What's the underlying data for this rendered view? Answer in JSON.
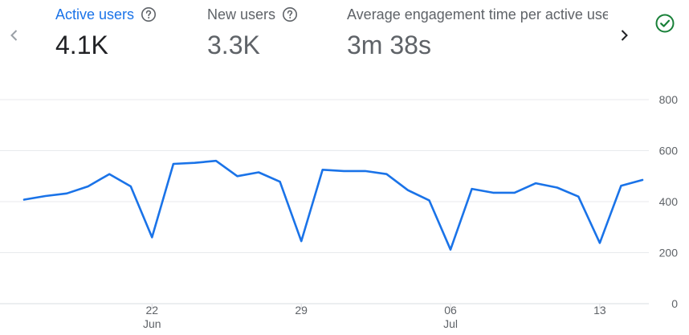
{
  "nav": {
    "prev_icon": "chevron-left-icon",
    "next_icon": "chevron-right-icon"
  },
  "metrics": [
    {
      "label": "Active users",
      "value": "4.1K",
      "help_icon": "help-circle-icon",
      "active": true
    },
    {
      "label": "New users",
      "value": "3.3K",
      "help_icon": "help-circle-icon",
      "active": false
    },
    {
      "label": "Average engagement time per active user",
      "value": "3m 38s",
      "active": false
    }
  ],
  "status": {
    "icon": "check-circle-icon",
    "color": "#188038"
  },
  "colors": {
    "series": "#1a73e8",
    "active_label": "#1a73e8",
    "grid": "#e8eaed"
  },
  "chart_data": {
    "type": "line",
    "ylim": [
      0,
      800
    ],
    "y_ticks": [
      0,
      200,
      400,
      600,
      800
    ],
    "y_axis_position": "right",
    "grid": true,
    "x_ticks": [
      {
        "index": 6,
        "day": "22",
        "month": "Jun"
      },
      {
        "index": 13,
        "day": "29",
        "month": ""
      },
      {
        "index": 20,
        "day": "06",
        "month": "Jul"
      },
      {
        "index": 27,
        "day": "13",
        "month": ""
      }
    ],
    "series": [
      {
        "values": [
          408,
          422,
          432,
          460,
          508,
          460,
          260,
          548,
          552,
          560,
          500,
          515,
          478,
          245,
          525,
          520,
          520,
          508,
          445,
          405,
          212,
          450,
          435,
          435,
          472,
          455,
          420,
          238,
          462,
          485
        ]
      }
    ]
  }
}
